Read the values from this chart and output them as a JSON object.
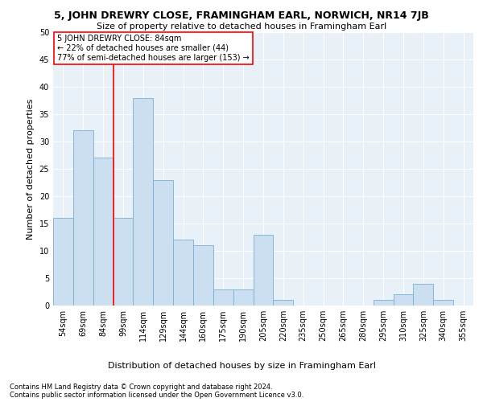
{
  "title": "5, JOHN DREWRY CLOSE, FRAMINGHAM EARL, NORWICH, NR14 7JB",
  "subtitle": "Size of property relative to detached houses in Framingham Earl",
  "xlabel": "Distribution of detached houses by size in Framingham Earl",
  "ylabel": "Number of detached properties",
  "footer1": "Contains HM Land Registry data © Crown copyright and database right 2024.",
  "footer2": "Contains public sector information licensed under the Open Government Licence v3.0.",
  "bar_color": "#ccdff0",
  "bar_edge_color": "#7aafd4",
  "bg_color": "#e8f0f8",
  "grid_color": "#ffffff",
  "categories": [
    "54sqm",
    "69sqm",
    "84sqm",
    "99sqm",
    "114sqm",
    "129sqm",
    "144sqm",
    "160sqm",
    "175sqm",
    "190sqm",
    "205sqm",
    "220sqm",
    "235sqm",
    "250sqm",
    "265sqm",
    "280sqm",
    "295sqm",
    "310sqm",
    "325sqm",
    "340sqm",
    "355sqm"
  ],
  "values": [
    16,
    32,
    27,
    16,
    38,
    23,
    12,
    11,
    3,
    3,
    13,
    1,
    0,
    0,
    0,
    0,
    1,
    2,
    4,
    1,
    0
  ],
  "property_label": "5 JOHN DREWRY CLOSE: 84sqm",
  "annotation_line1": "← 22% of detached houses are smaller (44)",
  "annotation_line2": "77% of semi-detached houses are larger (153) →",
  "vline_index": 2.5,
  "ylim": [
    0,
    50
  ],
  "yticks": [
    0,
    5,
    10,
    15,
    20,
    25,
    30,
    35,
    40,
    45,
    50
  ],
  "title_fontsize": 9,
  "subtitle_fontsize": 8,
  "ylabel_fontsize": 8,
  "xlabel_fontsize": 8,
  "tick_fontsize": 7,
  "annotation_fontsize": 7,
  "footer_fontsize": 6
}
